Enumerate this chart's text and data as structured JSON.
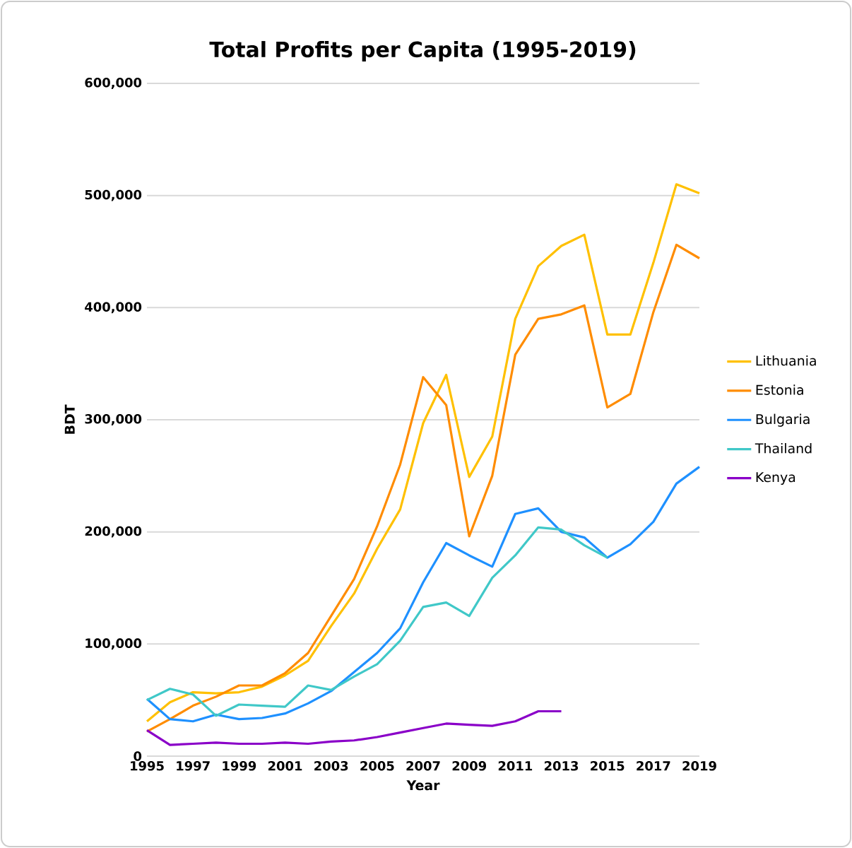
{
  "chart_data": {
    "type": "line",
    "title": "Total Profits per Capita (1995-2019)",
    "xlabel": "Year",
    "ylabel": "BDT",
    "x": [
      1995,
      1996,
      1997,
      1998,
      1999,
      2000,
      2001,
      2002,
      2003,
      2004,
      2005,
      2006,
      2007,
      2008,
      2009,
      2010,
      2011,
      2012,
      2013,
      2014,
      2015,
      2016,
      2017,
      2018,
      2019
    ],
    "series": [
      {
        "name": "Lithuania",
        "color": "#ffc000",
        "values": [
          31000,
          48000,
          57000,
          56000,
          57000,
          62000,
          72000,
          85000,
          116000,
          145000,
          185000,
          220000,
          297000,
          340000,
          249000,
          285000,
          390000,
          437000,
          455000,
          465000,
          376000,
          376000,
          440000,
          510000,
          502000
        ]
      },
      {
        "name": "Estonia",
        "color": "#ff8c00",
        "values": [
          22000,
          33000,
          45000,
          53000,
          63000,
          63000,
          74000,
          92000,
          125000,
          158000,
          205000,
          260000,
          338000,
          313000,
          196000,
          250000,
          358000,
          390000,
          394000,
          402000,
          311000,
          323000,
          396000,
          456000,
          444000
        ]
      },
      {
        "name": "Bulgaria",
        "color": "#1e90ff",
        "values": [
          51000,
          33000,
          31000,
          37000,
          33000,
          34000,
          38000,
          47000,
          58000,
          75000,
          92000,
          114000,
          155000,
          190000,
          179000,
          169000,
          216000,
          221000,
          200000,
          195000,
          177000,
          189000,
          209000,
          243000,
          258000
        ]
      },
      {
        "name": "Thailand",
        "color": "#40c8c8",
        "values": [
          50000,
          60000,
          55000,
          36000,
          46000,
          45000,
          44000,
          63000,
          59000,
          71000,
          82000,
          103000,
          133000,
          137000,
          125000,
          159000,
          179000,
          204000,
          202000,
          188000,
          177000,
          null,
          null,
          null,
          null
        ]
      },
      {
        "name": "Kenya",
        "color": "#8a00c8",
        "values": [
          23000,
          10000,
          11000,
          12000,
          11000,
          11000,
          12000,
          11000,
          13000,
          14000,
          17000,
          21000,
          25000,
          29000,
          28000,
          27000,
          31000,
          40000,
          40000,
          null,
          null,
          null,
          null,
          null,
          null
        ]
      }
    ],
    "xlim": [
      1995,
      2019
    ],
    "xticks": [
      1995,
      1997,
      1999,
      2001,
      2003,
      2005,
      2007,
      2009,
      2011,
      2013,
      2015,
      2017,
      2019
    ],
    "ylim": [
      0,
      600000
    ],
    "yticks": [
      {
        "value": 0,
        "label": "0"
      },
      {
        "value": 100000,
        "label": "100,000"
      },
      {
        "value": 200000,
        "label": "200,000"
      },
      {
        "value": 300000,
        "label": "300,000"
      },
      {
        "value": 400000,
        "label": "400,000"
      },
      {
        "value": 500000,
        "label": "500,000"
      },
      {
        "value": 600000,
        "label": "600,000"
      }
    ],
    "grid": "y",
    "legend": "right",
    "marker": "none",
    "line_style": "solid"
  }
}
